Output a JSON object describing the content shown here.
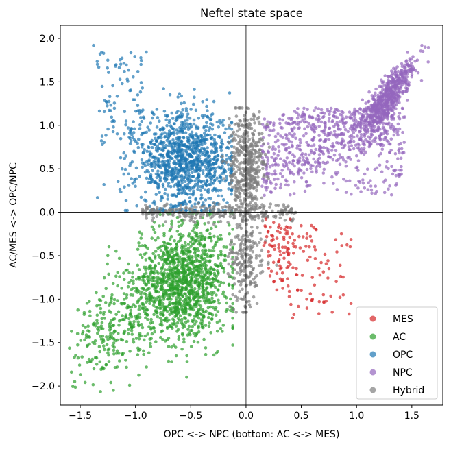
{
  "chart_data": {
    "type": "scatter",
    "title": "Neftel state space",
    "xlabel": "OPC <-> NPC   (bottom: AC <-> MES)",
    "ylabel": "AC/MES  <->  OPC/NPC",
    "xlim": [
      -1.68,
      1.78
    ],
    "ylim": [
      -2.22,
      2.15
    ],
    "xticks": [
      -1.5,
      -1.0,
      -0.5,
      0.0,
      0.5,
      1.0,
      1.5
    ],
    "xtick_labels": [
      "−1.5",
      "−1.0",
      "−0.5",
      "0.0",
      "0.5",
      "1.0",
      "1.5"
    ],
    "yticks": [
      -2.0,
      -1.5,
      -1.0,
      -0.5,
      0.0,
      0.5,
      1.0,
      1.5,
      2.0
    ],
    "ytick_labels": [
      "−2.0",
      "−1.5",
      "−1.0",
      "−0.5",
      "0.0",
      "0.5",
      "1.0",
      "1.5",
      "2.0"
    ],
    "reference_lines": {
      "x": 0.0,
      "y": 0.0
    },
    "grid": false,
    "legend_position": "bottom-right",
    "series": [
      {
        "name": "MES",
        "color": "#d62728",
        "distribution": {
          "x_range": [
            0.13,
            0.95
          ],
          "y_range": [
            -1.22,
            0.0
          ],
          "center": [
            0.35,
            -0.35
          ],
          "approx_count": 130
        },
        "points": [
          [
            0.18,
            -0.08
          ],
          [
            0.25,
            -0.12
          ],
          [
            0.3,
            -0.15
          ],
          [
            0.35,
            -0.2
          ],
          [
            0.42,
            -0.25
          ],
          [
            0.48,
            -0.28
          ],
          [
            0.55,
            -0.3
          ],
          [
            0.2,
            -0.22
          ],
          [
            0.28,
            -0.3
          ],
          [
            0.38,
            -0.35
          ],
          [
            0.45,
            -0.4
          ],
          [
            0.52,
            -0.45
          ],
          [
            0.22,
            -0.5
          ],
          [
            0.3,
            -0.55
          ],
          [
            0.4,
            -0.6
          ],
          [
            0.33,
            -0.7
          ],
          [
            0.46,
            -0.72
          ],
          [
            0.25,
            -0.8
          ],
          [
            0.38,
            -0.85
          ],
          [
            0.5,
            -0.9
          ],
          [
            0.6,
            -0.75
          ],
          [
            0.55,
            -1.0
          ],
          [
            0.7,
            -0.95
          ],
          [
            0.78,
            -1.15
          ],
          [
            0.85,
            -0.98
          ],
          [
            0.95,
            -1.05
          ],
          [
            0.4,
            -0.08
          ],
          [
            0.62,
            -0.4
          ],
          [
            0.68,
            -0.58
          ],
          [
            0.75,
            -0.65
          ]
        ]
      },
      {
        "name": "AC",
        "color": "#2ca02c",
        "distribution": {
          "x_range": [
            -1.55,
            -0.1
          ],
          "y_range": [
            -2.05,
            0.0
          ],
          "center": [
            -0.55,
            -0.85
          ],
          "approx_count": 1500
        },
        "points": [
          [
            -1.55,
            -1.95
          ],
          [
            -1.48,
            -1.4
          ],
          [
            -1.35,
            -1.75
          ],
          [
            -1.2,
            -2.05
          ],
          [
            -1.3,
            -1.5
          ],
          [
            -1.15,
            -1.3
          ],
          [
            -1.0,
            -1.2
          ],
          [
            -0.9,
            -1.0
          ],
          [
            -0.8,
            -0.85
          ],
          [
            -0.7,
            -0.9
          ],
          [
            -0.6,
            -0.8
          ],
          [
            -0.5,
            -0.75
          ],
          [
            -0.4,
            -0.6
          ],
          [
            -0.3,
            -0.5
          ],
          [
            -0.2,
            -0.4
          ],
          [
            -0.15,
            -0.25
          ],
          [
            -1.25,
            -0.5
          ],
          [
            -0.95,
            -0.3
          ],
          [
            -0.75,
            -0.15
          ],
          [
            -0.55,
            -0.35
          ],
          [
            -0.45,
            -1.05
          ],
          [
            -0.35,
            -0.95
          ],
          [
            -0.65,
            -1.25
          ],
          [
            -0.85,
            -1.4
          ],
          [
            -1.05,
            -1.6
          ],
          [
            -0.7,
            -1.45
          ],
          [
            -0.25,
            -0.8
          ],
          [
            -0.2,
            -0.65
          ],
          [
            -0.55,
            -0.55
          ],
          [
            -0.62,
            -1.1
          ]
        ]
      },
      {
        "name": "OPC",
        "color": "#1f77b4",
        "distribution": {
          "x_range": [
            -1.4,
            -0.12
          ],
          "y_range": [
            0.0,
            1.92
          ],
          "center": [
            -0.55,
            0.58
          ],
          "approx_count": 1200
        },
        "points": [
          [
            -1.38,
            1.92
          ],
          [
            -1.32,
            1.82
          ],
          [
            -1.25,
            1.75
          ],
          [
            -1.18,
            1.68
          ],
          [
            -1.1,
            1.62
          ],
          [
            -0.95,
            1.7
          ],
          [
            -1.12,
            1.48
          ],
          [
            -1.05,
            1.4
          ],
          [
            -0.98,
            1.35
          ],
          [
            -1.3,
            0.78
          ],
          [
            -1.12,
            0.5
          ],
          [
            -1.2,
            0.98
          ],
          [
            -1.05,
            0.85
          ],
          [
            -0.92,
            0.72
          ],
          [
            -0.8,
            0.62
          ],
          [
            -0.7,
            0.55
          ],
          [
            -0.6,
            0.48
          ],
          [
            -0.5,
            0.65
          ],
          [
            -0.4,
            0.58
          ],
          [
            -0.3,
            0.5
          ],
          [
            -0.2,
            0.45
          ],
          [
            -0.45,
            0.9
          ],
          [
            -0.55,
            1.05
          ],
          [
            -0.35,
            1.1
          ],
          [
            -0.65,
            0.3
          ],
          [
            -0.48,
            0.2
          ],
          [
            -0.25,
            0.25
          ],
          [
            -0.75,
            0.95
          ],
          [
            -0.85,
            1.15
          ],
          [
            -0.15,
            0.8
          ]
        ]
      },
      {
        "name": "NPC",
        "color": "#9467bd",
        "distribution": {
          "x_range": [
            0.12,
            1.65
          ],
          "y_range": [
            0.05,
            1.92
          ],
          "center": [
            1.3,
            1.35
          ],
          "approx_count": 1300
        },
        "points": [
          [
            0.15,
            0.55
          ],
          [
            0.22,
            0.35
          ],
          [
            0.3,
            0.7
          ],
          [
            0.38,
            0.5
          ],
          [
            0.45,
            0.85
          ],
          [
            0.52,
            0.6
          ],
          [
            0.6,
            0.95
          ],
          [
            0.68,
            0.7
          ],
          [
            0.75,
            1.05
          ],
          [
            0.82,
            0.8
          ],
          [
            0.9,
            0.95
          ],
          [
            0.98,
            1.0
          ],
          [
            1.05,
            1.1
          ],
          [
            1.12,
            1.18
          ],
          [
            1.2,
            1.25
          ],
          [
            1.28,
            1.35
          ],
          [
            1.35,
            1.45
          ],
          [
            1.42,
            1.55
          ],
          [
            1.5,
            1.65
          ],
          [
            1.55,
            1.75
          ],
          [
            1.6,
            1.85
          ],
          [
            1.62,
            1.9
          ],
          [
            0.4,
            0.2
          ],
          [
            0.55,
            0.3
          ],
          [
            0.7,
            0.45
          ],
          [
            0.85,
            0.55
          ],
          [
            1.0,
            0.65
          ],
          [
            0.25,
            1.0
          ],
          [
            0.5,
            1.1
          ],
          [
            0.63,
            1.2
          ]
        ]
      },
      {
        "name": "Hybrid",
        "color": "#7f7f7f",
        "distribution": {
          "x_range": [
            -0.95,
            0.5
          ],
          "y_range": [
            -1.15,
            1.2
          ],
          "center": [
            0.0,
            0.0
          ],
          "approx_count": 900
        },
        "points": [
          [
            -0.12,
            0.9
          ],
          [
            -0.05,
            0.7
          ],
          [
            0.02,
            0.55
          ],
          [
            0.08,
            0.4
          ],
          [
            -0.1,
            0.3
          ],
          [
            0.05,
            0.2
          ],
          [
            0.1,
            0.15
          ],
          [
            -0.05,
            1.05
          ],
          [
            0.0,
            1.15
          ],
          [
            -0.15,
            0.05
          ],
          [
            -0.3,
            0.0
          ],
          [
            -0.45,
            -0.03
          ],
          [
            -0.6,
            -0.05
          ],
          [
            -0.75,
            -0.03
          ],
          [
            -0.9,
            0.05
          ],
          [
            -0.2,
            -0.05
          ],
          [
            0.15,
            -0.1
          ],
          [
            0.25,
            -0.05
          ],
          [
            0.4,
            0.02
          ],
          [
            0.05,
            -0.25
          ],
          [
            -0.05,
            -0.4
          ],
          [
            0.03,
            -0.55
          ],
          [
            -0.08,
            -0.7
          ],
          [
            0.0,
            -0.85
          ],
          [
            0.1,
            -1.05
          ],
          [
            0.2,
            -0.6
          ],
          [
            -0.12,
            -0.95
          ],
          [
            0.12,
            -0.35
          ],
          [
            -0.02,
            0.0
          ],
          [
            0.06,
            0.85
          ]
        ]
      }
    ]
  }
}
